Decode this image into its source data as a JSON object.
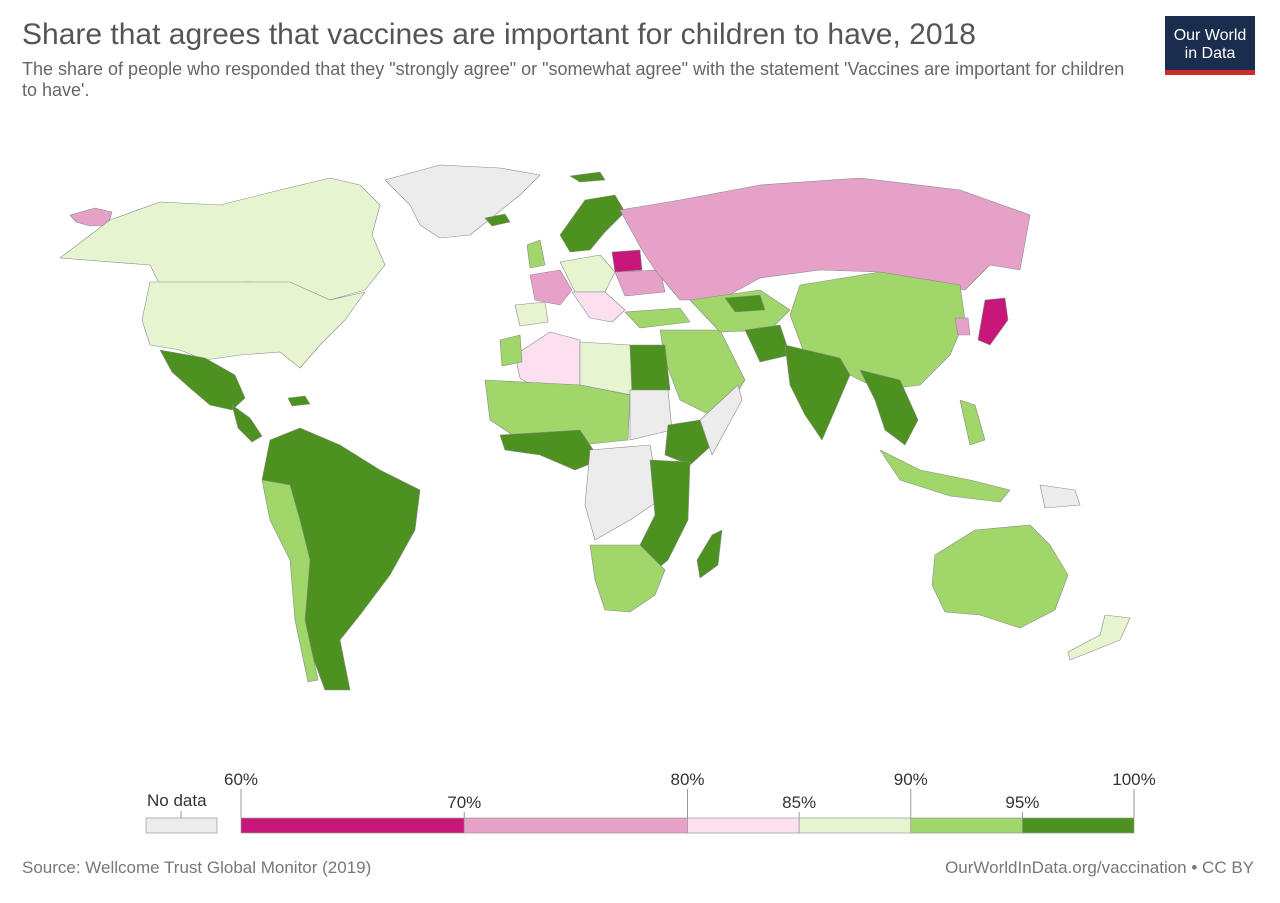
{
  "header": {
    "title": "Share that agrees that vaccines are important for children to have, 2018",
    "subtitle": "The share of people who responded that they \"strongly agree\" or \"somewhat agree\" with the statement 'Vaccines are important for children to have'."
  },
  "logo": {
    "line1": "Our World",
    "line2": "in Data"
  },
  "legend": {
    "no_data_label": "No data",
    "no_data_color": "#ececec",
    "bins": [
      {
        "from": 60,
        "to": 70,
        "color": "#c8177a"
      },
      {
        "from": 70,
        "to": 80,
        "color": "#e6a1c8"
      },
      {
        "from": 80,
        "to": 85,
        "color": "#fde0ef"
      },
      {
        "from": 85,
        "to": 90,
        "color": "#e6f5d0"
      },
      {
        "from": 90,
        "to": 95,
        "color": "#a1d76a"
      },
      {
        "from": 95,
        "to": 100,
        "color": "#4d9221"
      }
    ],
    "ticks": [
      {
        "value": 60,
        "label": "60%"
      },
      {
        "value": 70,
        "label": "70%"
      },
      {
        "value": 80,
        "label": "80%"
      },
      {
        "value": 85,
        "label": "85%"
      },
      {
        "value": 90,
        "label": "90%"
      },
      {
        "value": 95,
        "label": "95%"
      },
      {
        "value": 100,
        "label": "100%"
      }
    ]
  },
  "footer": {
    "source": "Source: Wellcome Trust Global Monitor (2019)",
    "credit": "OurWorldInData.org/vaccination • CC BY"
  }
}
